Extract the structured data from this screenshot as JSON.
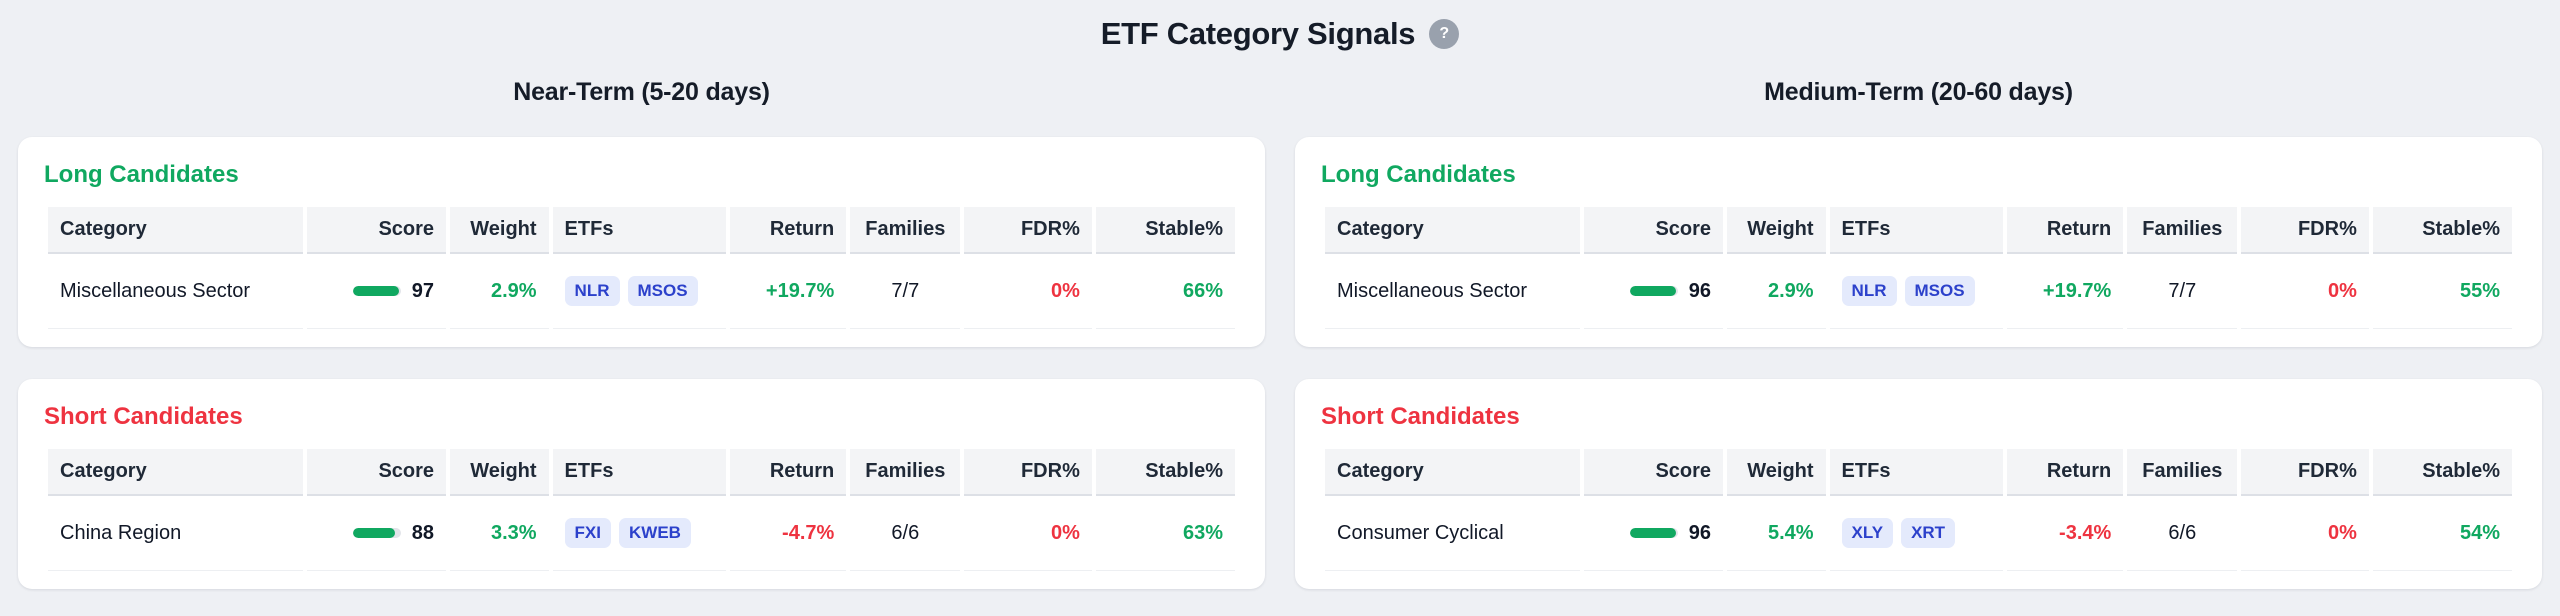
{
  "page": {
    "title": "ETF Category Signals",
    "help_icon": "?"
  },
  "columns": [
    "Category",
    "Score",
    "Weight",
    "ETFs",
    "Return",
    "Families",
    "FDR%",
    "Stable%"
  ],
  "sections": [
    {
      "title": "Near-Term (5-20 days)",
      "cards": [
        {
          "title": "Long Candidates",
          "type": "long",
          "rows": [
            {
              "category": "Miscellaneous Sector",
              "score": 97,
              "weight": "2.9%",
              "etfs": [
                "NLR",
                "MSOS"
              ],
              "return": "+19.7%",
              "families": "7/7",
              "fdr": "0%",
              "stable": "66%"
            }
          ]
        },
        {
          "title": "Short Candidates",
          "type": "short",
          "rows": [
            {
              "category": "China Region",
              "score": 88,
              "weight": "3.3%",
              "etfs": [
                "FXI",
                "KWEB"
              ],
              "return": "-4.7%",
              "families": "6/6",
              "fdr": "0%",
              "stable": "63%"
            }
          ]
        }
      ]
    },
    {
      "title": "Medium-Term (20-60 days)",
      "cards": [
        {
          "title": "Long Candidates",
          "type": "long",
          "rows": [
            {
              "category": "Miscellaneous Sector",
              "score": 96,
              "weight": "2.9%",
              "etfs": [
                "NLR",
                "MSOS"
              ],
              "return": "+19.7%",
              "families": "7/7",
              "fdr": "0%",
              "stable": "55%"
            }
          ]
        },
        {
          "title": "Short Candidates",
          "type": "short",
          "rows": [
            {
              "category": "Consumer Cyclical",
              "score": 96,
              "weight": "5.4%",
              "etfs": [
                "XLY",
                "XRT"
              ],
              "return": "-3.4%",
              "families": "6/6",
              "fdr": "0%",
              "stable": "54%"
            }
          ]
        }
      ]
    }
  ],
  "colors": {
    "page_bg": "#eef0f4",
    "card_bg": "#ffffff",
    "heading_text": "#151c28",
    "green": "#10a860",
    "red": "#ee3340",
    "badge_bg": "#e4eafc",
    "badge_text": "#2c41cb",
    "table_header_bg": "#f3f4f6",
    "neutral_text": "#111827",
    "bar_track": "#e2e4e9",
    "help_icon_bg": "#99a1ad"
  }
}
